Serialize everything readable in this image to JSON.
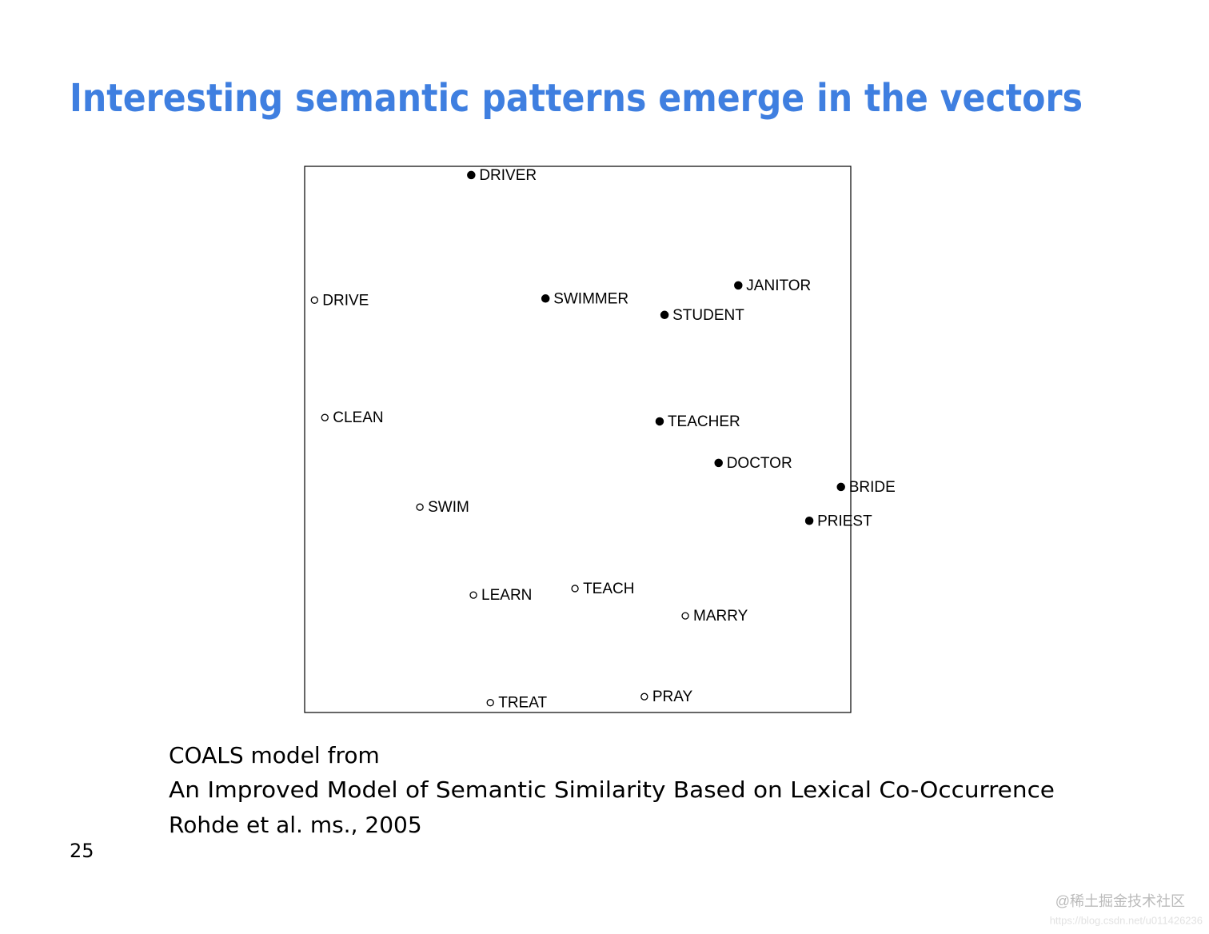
{
  "slide": {
    "title": "Interesting semantic patterns emerge in the vectors",
    "caption": [
      "COALS model from",
      "An Improved Model of Semantic Similarity Based on Lexical Co-Occurrence",
      "Rohde et al. ms., 2005"
    ],
    "page_number": "25",
    "watermark": [
      "@稀土掘金技术社区",
      "https://blog.csdn.net/u011426236"
    ]
  },
  "chart_data": {
    "type": "scatter",
    "xlim": [
      0,
      100
    ],
    "ylim": [
      0,
      100
    ],
    "series": [
      {
        "marker": "filled",
        "color": "#000000",
        "labels": [
          "DRIVER",
          "SWIMMER",
          "JANITOR",
          "STUDENT",
          "TEACHER",
          "DOCTOR",
          "BRIDE",
          "PRIEST"
        ],
        "x": [
          30.5,
          44.1,
          79.4,
          65.9,
          65.0,
          75.8,
          98.2,
          92.4
        ],
        "values": [
          98.4,
          75.8,
          78.2,
          72.8,
          53.3,
          45.7,
          41.3,
          35.1
        ]
      },
      {
        "marker": "open",
        "color": "#000000",
        "labels": [
          "DRIVE",
          "CLEAN",
          "SWIM",
          "LEARN",
          "TEACH",
          "MARRY",
          "TREAT",
          "PRAY"
        ],
        "x": [
          1.8,
          3.7,
          21.1,
          30.9,
          49.5,
          69.7,
          34.0,
          62.2
        ],
        "values": [
          75.5,
          54.0,
          37.6,
          21.5,
          22.7,
          17.7,
          1.8,
          2.9
        ]
      }
    ]
  }
}
